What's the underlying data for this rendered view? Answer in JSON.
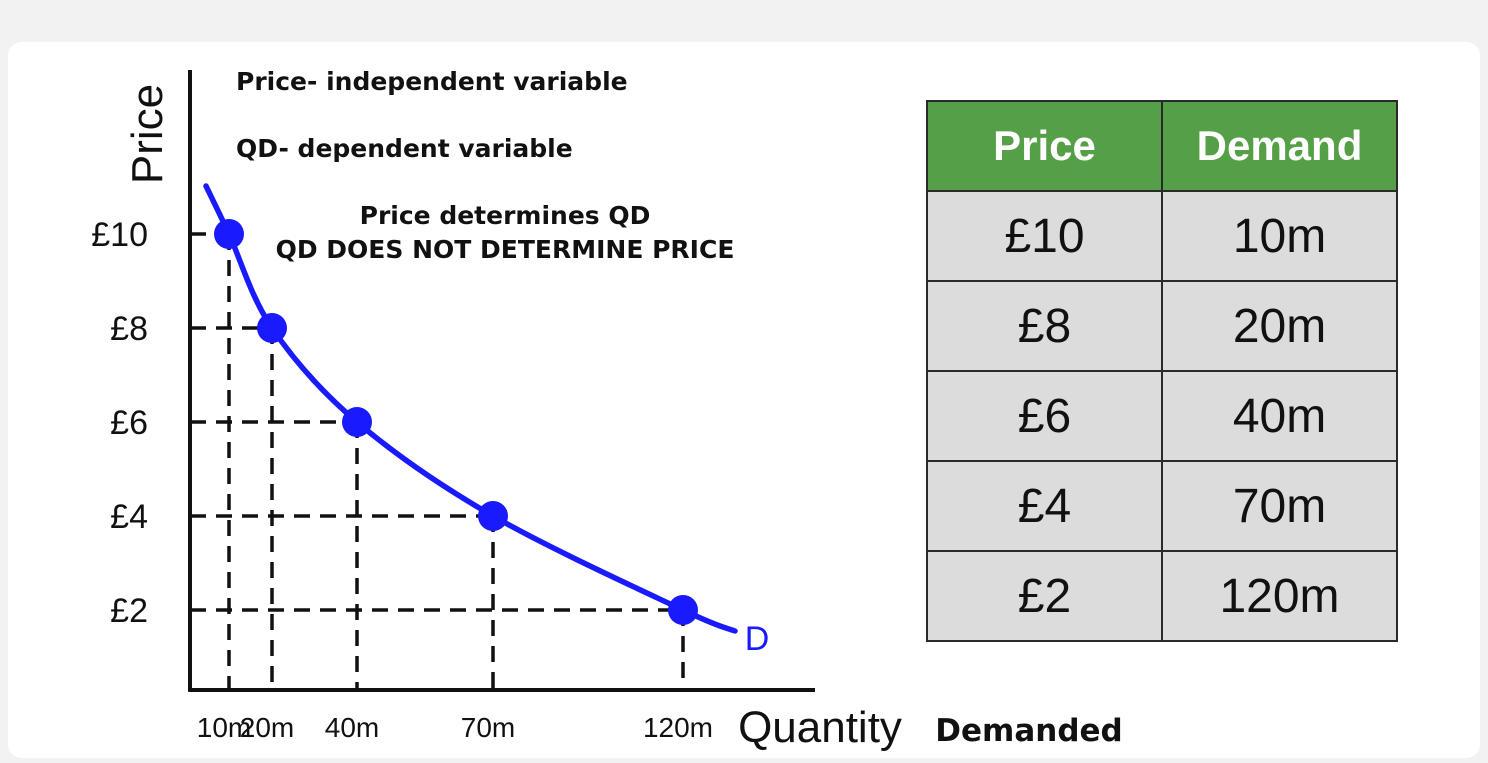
{
  "annotations": {
    "line1": "Price- independent variable",
    "line2": "QD- dependent variable",
    "line3": "Price determines QD",
    "line4": "QD DOES NOT DETERMINE PRICE"
  },
  "chart_data": {
    "type": "line",
    "title": "",
    "xlabel": "Quantity",
    "xlabel_suffix": "Demanded",
    "ylabel": "Price",
    "curve_label": "D",
    "series": [
      {
        "name": "D",
        "x": [
          10,
          20,
          40,
          70,
          120
        ],
        "y": [
          10,
          8,
          6,
          4,
          2
        ],
        "x_labels": [
          "10m",
          "20m",
          "40m",
          "70m",
          "120m"
        ],
        "y_labels": [
          "£10",
          "£8",
          "£6",
          "£4",
          "£2"
        ]
      }
    ],
    "colors": {
      "curve": "#1a1aff",
      "axis": "#111111",
      "guides": "#111111"
    },
    "grid": false,
    "guide_lines": "dashed"
  },
  "table": {
    "headers": [
      "Price",
      "Demand"
    ],
    "rows": [
      [
        "£10",
        "10m"
      ],
      [
        "£8",
        "20m"
      ],
      [
        "£6",
        "40m"
      ],
      [
        "£4",
        "70m"
      ],
      [
        "£2",
        "120m"
      ]
    ],
    "colors": {
      "header_bg": "#55a046",
      "cell_bg": "#dcdcdc"
    }
  }
}
